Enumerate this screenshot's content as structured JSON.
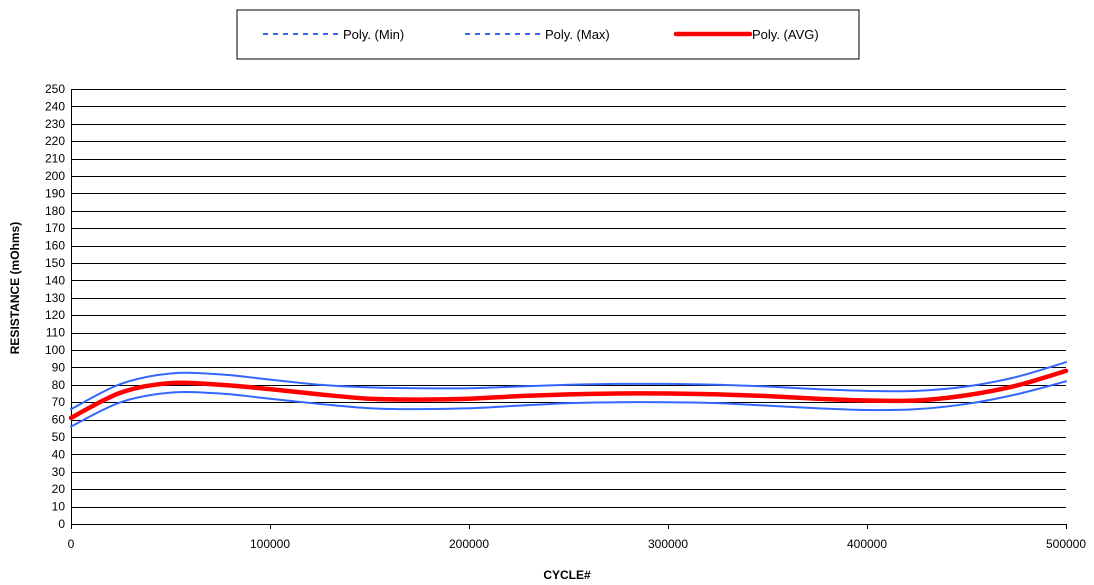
{
  "chart_data": {
    "type": "line",
    "title": "",
    "xlabel": "CYCLE#",
    "ylabel": "RESISTANCE (mOhms)",
    "xlim": [
      0,
      500000
    ],
    "ylim": [
      0,
      250
    ],
    "x_ticks": [
      0,
      100000,
      200000,
      300000,
      400000,
      500000
    ],
    "x_tick_labels": [
      "0",
      "100000",
      "200000",
      "300000",
      "400000",
      "500000"
    ],
    "y_tick_step": 10,
    "grid": "horizontal",
    "legend_position": "top-center",
    "x": [
      0,
      25000,
      50000,
      75000,
      100000,
      125000,
      150000,
      175000,
      200000,
      225000,
      250000,
      275000,
      300000,
      325000,
      350000,
      375000,
      400000,
      425000,
      450000,
      475000,
      500000
    ],
    "series": [
      {
        "name": "Poly. (Min)",
        "color": "#3366ff",
        "style": "dashed",
        "values": [
          56,
          70,
          75.5,
          75,
          72,
          69,
          66.5,
          66,
          66.5,
          68,
          69.5,
          70,
          70,
          69.5,
          68,
          66.5,
          65.5,
          66,
          69,
          74.5,
          82
        ]
      },
      {
        "name": "Poly. (Max)",
        "color": "#3366ff",
        "style": "dashed",
        "values": [
          66,
          80.5,
          86.5,
          86,
          83,
          80,
          78.5,
          78,
          78,
          79,
          80,
          80.5,
          80.5,
          80,
          79,
          77.5,
          76.5,
          76.5,
          79,
          84.5,
          93
        ]
      },
      {
        "name": "Poly. (AVG)",
        "color": "#ff0000",
        "style": "solid",
        "values": [
          61,
          75.5,
          81,
          80,
          77.5,
          74.5,
          72,
          71.5,
          72,
          73.5,
          74.5,
          75,
          75,
          74.5,
          73.5,
          72,
          71,
          71,
          74,
          79.5,
          88
        ]
      }
    ]
  }
}
